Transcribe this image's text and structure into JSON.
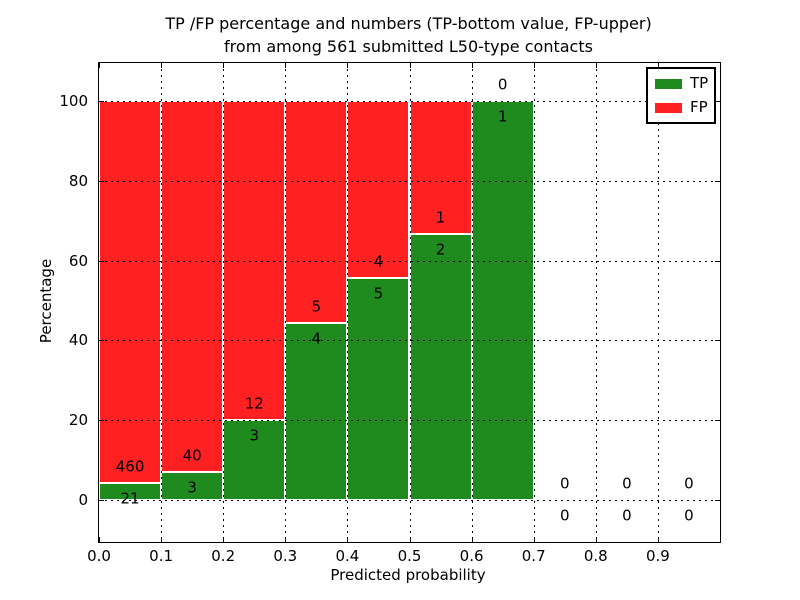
{
  "figure": {
    "title_line1": "TP /FP percentage and numbers (TP-bottom value, FP-upper)",
    "title_line2": "from among 561 submitted L50-type contacts"
  },
  "axes": {
    "xlabel": "Predicted probability",
    "ylabel": "Percentage",
    "x_tick_labels": [
      "0.0",
      "0.1",
      "0.2",
      "0.3",
      "0.4",
      "0.5",
      "0.6",
      "0.7",
      "0.8",
      "0.9"
    ],
    "y_tick_labels": [
      "0",
      "20",
      "40",
      "60",
      "80",
      "100"
    ],
    "xlim": [
      0.0,
      1.0
    ],
    "ylim": [
      -10.5,
      109.5
    ],
    "grid_style": "dotted"
  },
  "legend": {
    "position": "upper-right",
    "items": [
      {
        "label": "TP",
        "color": "#1f8b1f"
      },
      {
        "label": "FP",
        "color": "#ff2121"
      }
    ]
  },
  "chart_data": {
    "type": "bar",
    "stacked": true,
    "normalized_to_percent": true,
    "title": "TP /FP percentage and numbers (TP-bottom value, FP-upper) from among 561 submitted L50-type contacts",
    "xlabel": "Predicted probability",
    "ylabel": "Percentage",
    "bin_starts": [
      0.0,
      0.1,
      0.2,
      0.3,
      0.4,
      0.5,
      0.6,
      0.7,
      0.8,
      0.9
    ],
    "bin_width": 0.1,
    "series": [
      {
        "name": "TP",
        "color": "#1f8b1f",
        "counts": [
          21,
          3,
          3,
          4,
          5,
          2,
          1,
          0,
          0,
          0
        ]
      },
      {
        "name": "FP",
        "color": "#ff2121",
        "counts": [
          460,
          40,
          12,
          5,
          4,
          1,
          0,
          0,
          0,
          0
        ]
      }
    ],
    "total_contacts": 561,
    "ylim": [
      -10.5,
      109.5
    ],
    "xlim": [
      0.0,
      1.0
    ],
    "grid": true,
    "legend_position": "upper-right"
  }
}
